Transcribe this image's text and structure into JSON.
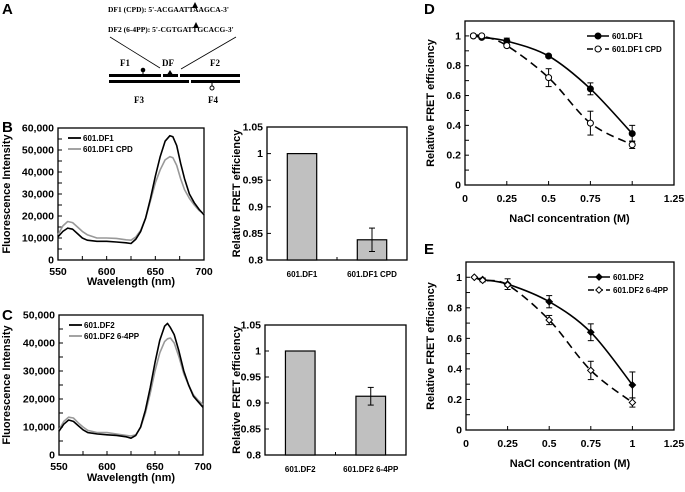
{
  "panels": {
    "A": {
      "letter": "A",
      "seq1": "DF1 (CPD): 5'-ACGAATTAAGCA-3'",
      "seq2": "DF2 (6-4PP): 5'-CGTGATTGCACG-3'",
      "labels": {
        "F1": "F1",
        "DF": "DF",
        "F2": "F2",
        "F3": "F3",
        "F4": "F4"
      }
    },
    "B": {
      "letter": "B"
    },
    "C": {
      "letter": "C"
    },
    "D": {
      "letter": "D"
    },
    "E": {
      "letter": "E"
    }
  },
  "chart_data": [
    {
      "id": "B-spectrum",
      "type": "line",
      "title": "",
      "xlabel": "Wavelength (nm)",
      "ylabel": "Fluorescence Intensity",
      "xlim": [
        550,
        700
      ],
      "ylim": [
        0,
        60000
      ],
      "xticks": [
        "550",
        "600",
        "650",
        "700"
      ],
      "yticks": [
        "0",
        "10,000",
        "20,000",
        "30,000",
        "40,000",
        "50,000",
        "60,000"
      ],
      "legend": "top-left",
      "series": [
        {
          "name": "601.DF1",
          "color": "#000000",
          "x": [
            550,
            555,
            560,
            565,
            570,
            575,
            580,
            590,
            600,
            610,
            620,
            625,
            630,
            635,
            640,
            645,
            650,
            655,
            660,
            665,
            668,
            672,
            676,
            680,
            685,
            690,
            695,
            700
          ],
          "y": [
            10500,
            13000,
            14500,
            14000,
            12000,
            10000,
            9000,
            8500,
            8500,
            8200,
            7800,
            7500,
            9500,
            13000,
            19000,
            28000,
            38000,
            47000,
            54000,
            56500,
            56000,
            52000,
            44000,
            37000,
            30000,
            26000,
            23000,
            20500
          ]
        },
        {
          "name": "601.DF1 CPD",
          "color": "#999999",
          "x": [
            550,
            555,
            560,
            565,
            570,
            575,
            580,
            590,
            600,
            610,
            620,
            625,
            630,
            635,
            640,
            645,
            650,
            655,
            660,
            665,
            668,
            672,
            676,
            680,
            685,
            690,
            695,
            700
          ],
          "y": [
            11500,
            15500,
            17500,
            17000,
            15000,
            13000,
            11500,
            10000,
            10000,
            9800,
            9200,
            9000,
            10500,
            13500,
            19000,
            27000,
            35000,
            41000,
            45500,
            47000,
            46500,
            43000,
            37000,
            32000,
            28000,
            25000,
            22500,
            21000
          ]
        }
      ]
    },
    {
      "id": "B-bars",
      "type": "bar",
      "xlabel": "",
      "ylabel": "Relative FRET efficiency",
      "ylim": [
        0.8,
        1.05
      ],
      "yticks": [
        "0.8",
        "0.85",
        "0.9",
        "0.95",
        "1",
        "1.05"
      ],
      "categories": [
        "601.DF1",
        "601.DF1 CPD"
      ],
      "values": [
        1.0,
        0.838
      ],
      "errors": [
        0,
        0.022
      ],
      "bar_color": "#c0c0c0"
    },
    {
      "id": "C-spectrum",
      "type": "line",
      "xlabel": "Wavelength (nm)",
      "ylabel": "Fluorescence Intensity",
      "xlim": [
        550,
        700
      ],
      "ylim": [
        0,
        50000
      ],
      "xticks": [
        "550",
        "600",
        "650",
        "700"
      ],
      "yticks": [
        "0",
        "10,000",
        "20,000",
        "30,000",
        "40,000",
        "50,000"
      ],
      "legend": "top-left",
      "series": [
        {
          "name": "601.DF2",
          "color": "#000000",
          "x": [
            550,
            555,
            560,
            565,
            570,
            575,
            580,
            590,
            600,
            610,
            620,
            625,
            630,
            635,
            640,
            645,
            650,
            655,
            660,
            663,
            666,
            670,
            675,
            680,
            685,
            690,
            695,
            700
          ],
          "y": [
            8500,
            11000,
            12500,
            12000,
            10500,
            9000,
            8000,
            7500,
            7200,
            7000,
            6500,
            6000,
            7000,
            10000,
            16000,
            24000,
            33000,
            41000,
            46000,
            47000,
            45500,
            43000,
            37000,
            30000,
            25000,
            21000,
            19000,
            17000
          ]
        },
        {
          "name": "601.DF2 6-4PP",
          "color": "#999999",
          "x": [
            550,
            555,
            560,
            565,
            570,
            575,
            580,
            590,
            600,
            610,
            620,
            625,
            630,
            635,
            640,
            645,
            650,
            655,
            660,
            663,
            666,
            670,
            675,
            680,
            685,
            690,
            695,
            700
          ],
          "y": [
            9000,
            12000,
            13500,
            13200,
            11500,
            10000,
            8800,
            8000,
            8000,
            7500,
            7000,
            6800,
            7200,
            9800,
            15000,
            22000,
            30000,
            36500,
            40500,
            41500,
            41800,
            40000,
            35000,
            29000,
            25000,
            21500,
            19500,
            18000
          ]
        }
      ]
    },
    {
      "id": "C-bars",
      "type": "bar",
      "ylabel": "Relative FRET efficiency",
      "ylim": [
        0.8,
        1.05
      ],
      "yticks": [
        "0.8",
        "0.85",
        "0.9",
        "0.95",
        "1",
        "1.05"
      ],
      "categories": [
        "601.DF2",
        "601.DF2 6-4PP"
      ],
      "values": [
        1.0,
        0.913
      ],
      "errors": [
        0,
        0.017
      ],
      "bar_color": "#c0c0c0"
    },
    {
      "id": "D-salt",
      "type": "line",
      "xlabel": "NaCl concentration (M)",
      "ylabel": "Relative FRET efficiency",
      "xlim": [
        0,
        1.25
      ],
      "ylim": [
        0,
        1.1
      ],
      "xticks": [
        "0",
        "0.25",
        "0.5",
        "0.75",
        "1",
        "1.25"
      ],
      "yticks": [
        "0",
        "0.2",
        "0.4",
        "0.6",
        "0.8",
        "1"
      ],
      "legend": "top-right",
      "series": [
        {
          "name": "601.DF1",
          "marker": "filled-circle",
          "style": "solid",
          "x": [
            0.05,
            0.1,
            0.25,
            0.5,
            0.75,
            1.0
          ],
          "y": [
            1.0,
            0.99,
            0.965,
            0.865,
            0.645,
            0.345
          ],
          "err": [
            0,
            0.01,
            0.02,
            0.01,
            0.04,
            0.055
          ]
        },
        {
          "name": "601.DF1 CPD",
          "marker": "open-circle",
          "style": "dashed",
          "x": [
            0.05,
            0.1,
            0.25,
            0.5,
            0.75,
            1.0
          ],
          "y": [
            1.0,
            1.0,
            0.935,
            0.72,
            0.415,
            0.27
          ],
          "err": [
            0,
            0,
            0.01,
            0.06,
            0.08,
            0.025
          ]
        }
      ]
    },
    {
      "id": "E-salt",
      "type": "line",
      "xlabel": "NaCl concentration (M)",
      "ylabel": "Relative FRET efficiency",
      "xlim": [
        0,
        1.25
      ],
      "ylim": [
        0,
        1.1
      ],
      "xticks": [
        "0",
        "0.25",
        "0.5",
        "0.75",
        "1",
        "1.25"
      ],
      "yticks": [
        "0",
        "0.2",
        "0.4",
        "0.6",
        "0.8",
        "1"
      ],
      "legend": "top-right",
      "series": [
        {
          "name": "601.DF2",
          "marker": "filled-diamond",
          "style": "solid",
          "x": [
            0.05,
            0.1,
            0.25,
            0.5,
            0.75,
            1.0
          ],
          "y": [
            1.0,
            0.985,
            0.955,
            0.84,
            0.64,
            0.295
          ],
          "err": [
            0,
            0.01,
            0.035,
            0.04,
            0.055,
            0.085
          ]
        },
        {
          "name": "601.DF2 6-4PP",
          "marker": "open-diamond",
          "style": "dashed",
          "x": [
            0.05,
            0.1,
            0.25,
            0.5,
            0.75,
            1.0
          ],
          "y": [
            1.0,
            0.98,
            0.95,
            0.72,
            0.39,
            0.18
          ],
          "err": [
            0,
            0.01,
            0.01,
            0.03,
            0.06,
            0.03
          ]
        }
      ]
    }
  ]
}
